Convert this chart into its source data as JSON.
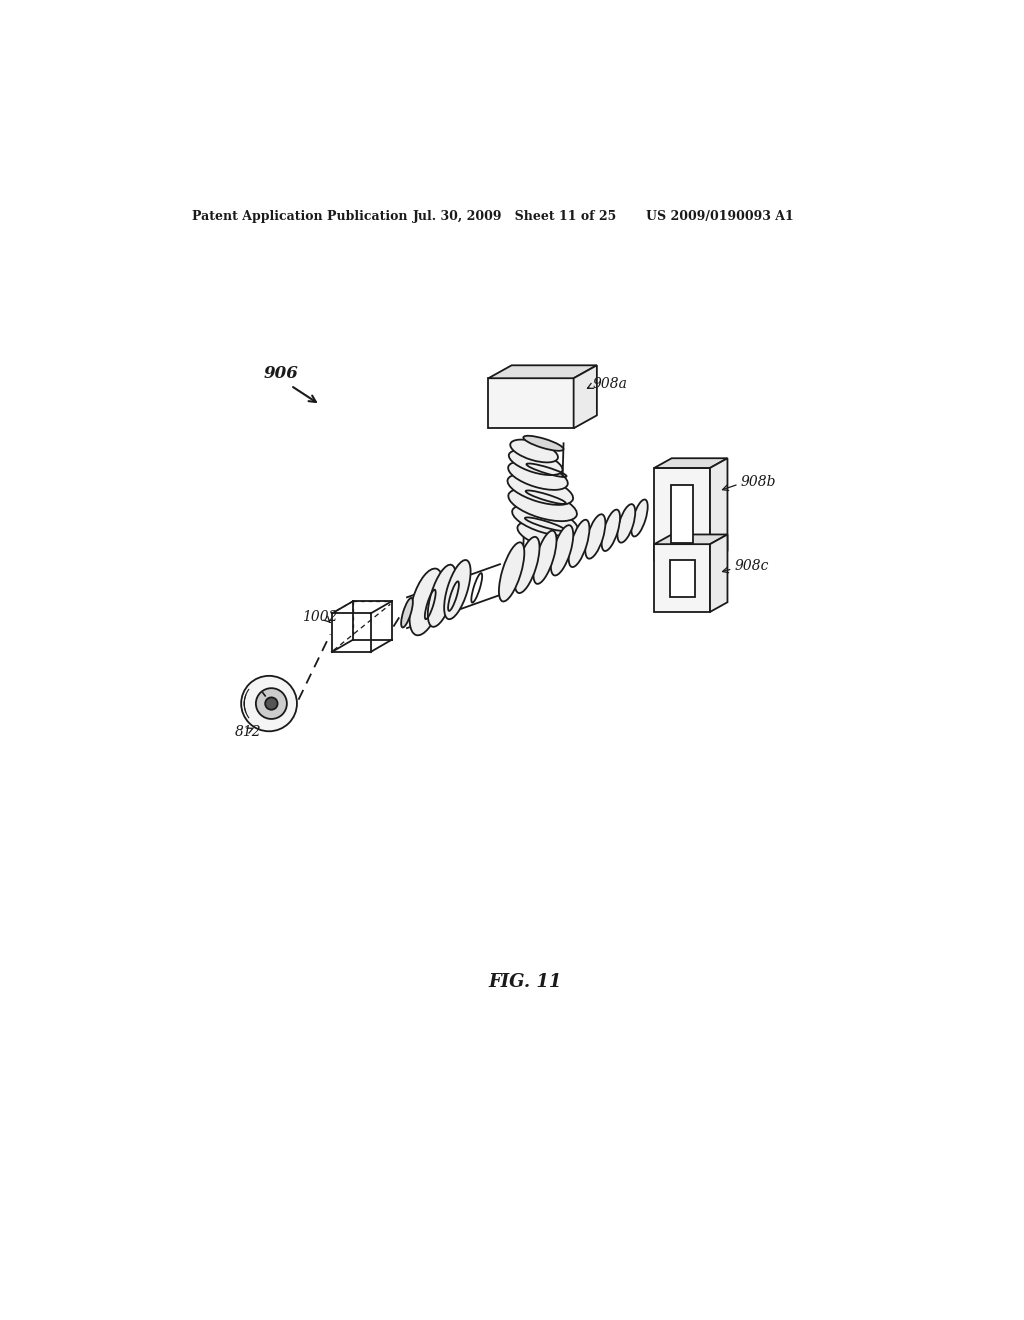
{
  "header_left": "Patent Application Publication",
  "header_mid": "Jul. 30, 2009   Sheet 11 of 25",
  "header_right": "US 2009/0190093 A1",
  "fig_label": "FIG. 11",
  "label_906": "906",
  "label_908a": "908a",
  "label_908b": "908b",
  "label_908c": "908c",
  "label_1002": "1002",
  "label_812": "812",
  "bg_color": "#ffffff",
  "line_color": "#1a1a1a"
}
